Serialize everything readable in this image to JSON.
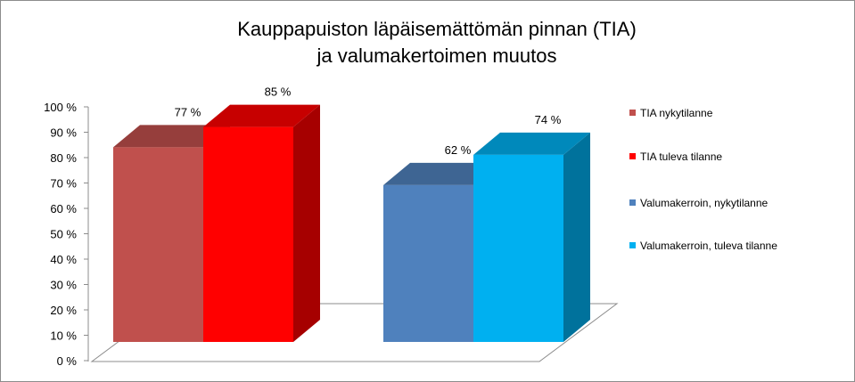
{
  "chart_data": {
    "type": "bar",
    "title_lines": [
      "Kauppapuiston läpäisemättömän pinnan (TIA)",
      "ja valumakertoimen muutos"
    ],
    "ylim": [
      0,
      100
    ],
    "y_ticks": [
      "0 %",
      "10 %",
      "20 %",
      "30 %",
      "40 %",
      "50 %",
      "60 %",
      "70 %",
      "80 %",
      "90 %",
      "100 %"
    ],
    "legend_position": "right",
    "series": [
      {
        "name": "TIA nykytilanne",
        "value": 77,
        "label": "77 %",
        "color": "#c0504d"
      },
      {
        "name": "TIA tuleva tilanne",
        "value": 85,
        "label": "85 %",
        "color": "#ff0000"
      },
      {
        "name": "Valumakerroin, nykytilanne",
        "value": 62,
        "label": "62 %",
        "color": "#4f81bd"
      },
      {
        "name": "Valumakerroin, tuleva tilanne",
        "value": 74,
        "label": "74 %",
        "color": "#00b0f0"
      }
    ]
  }
}
